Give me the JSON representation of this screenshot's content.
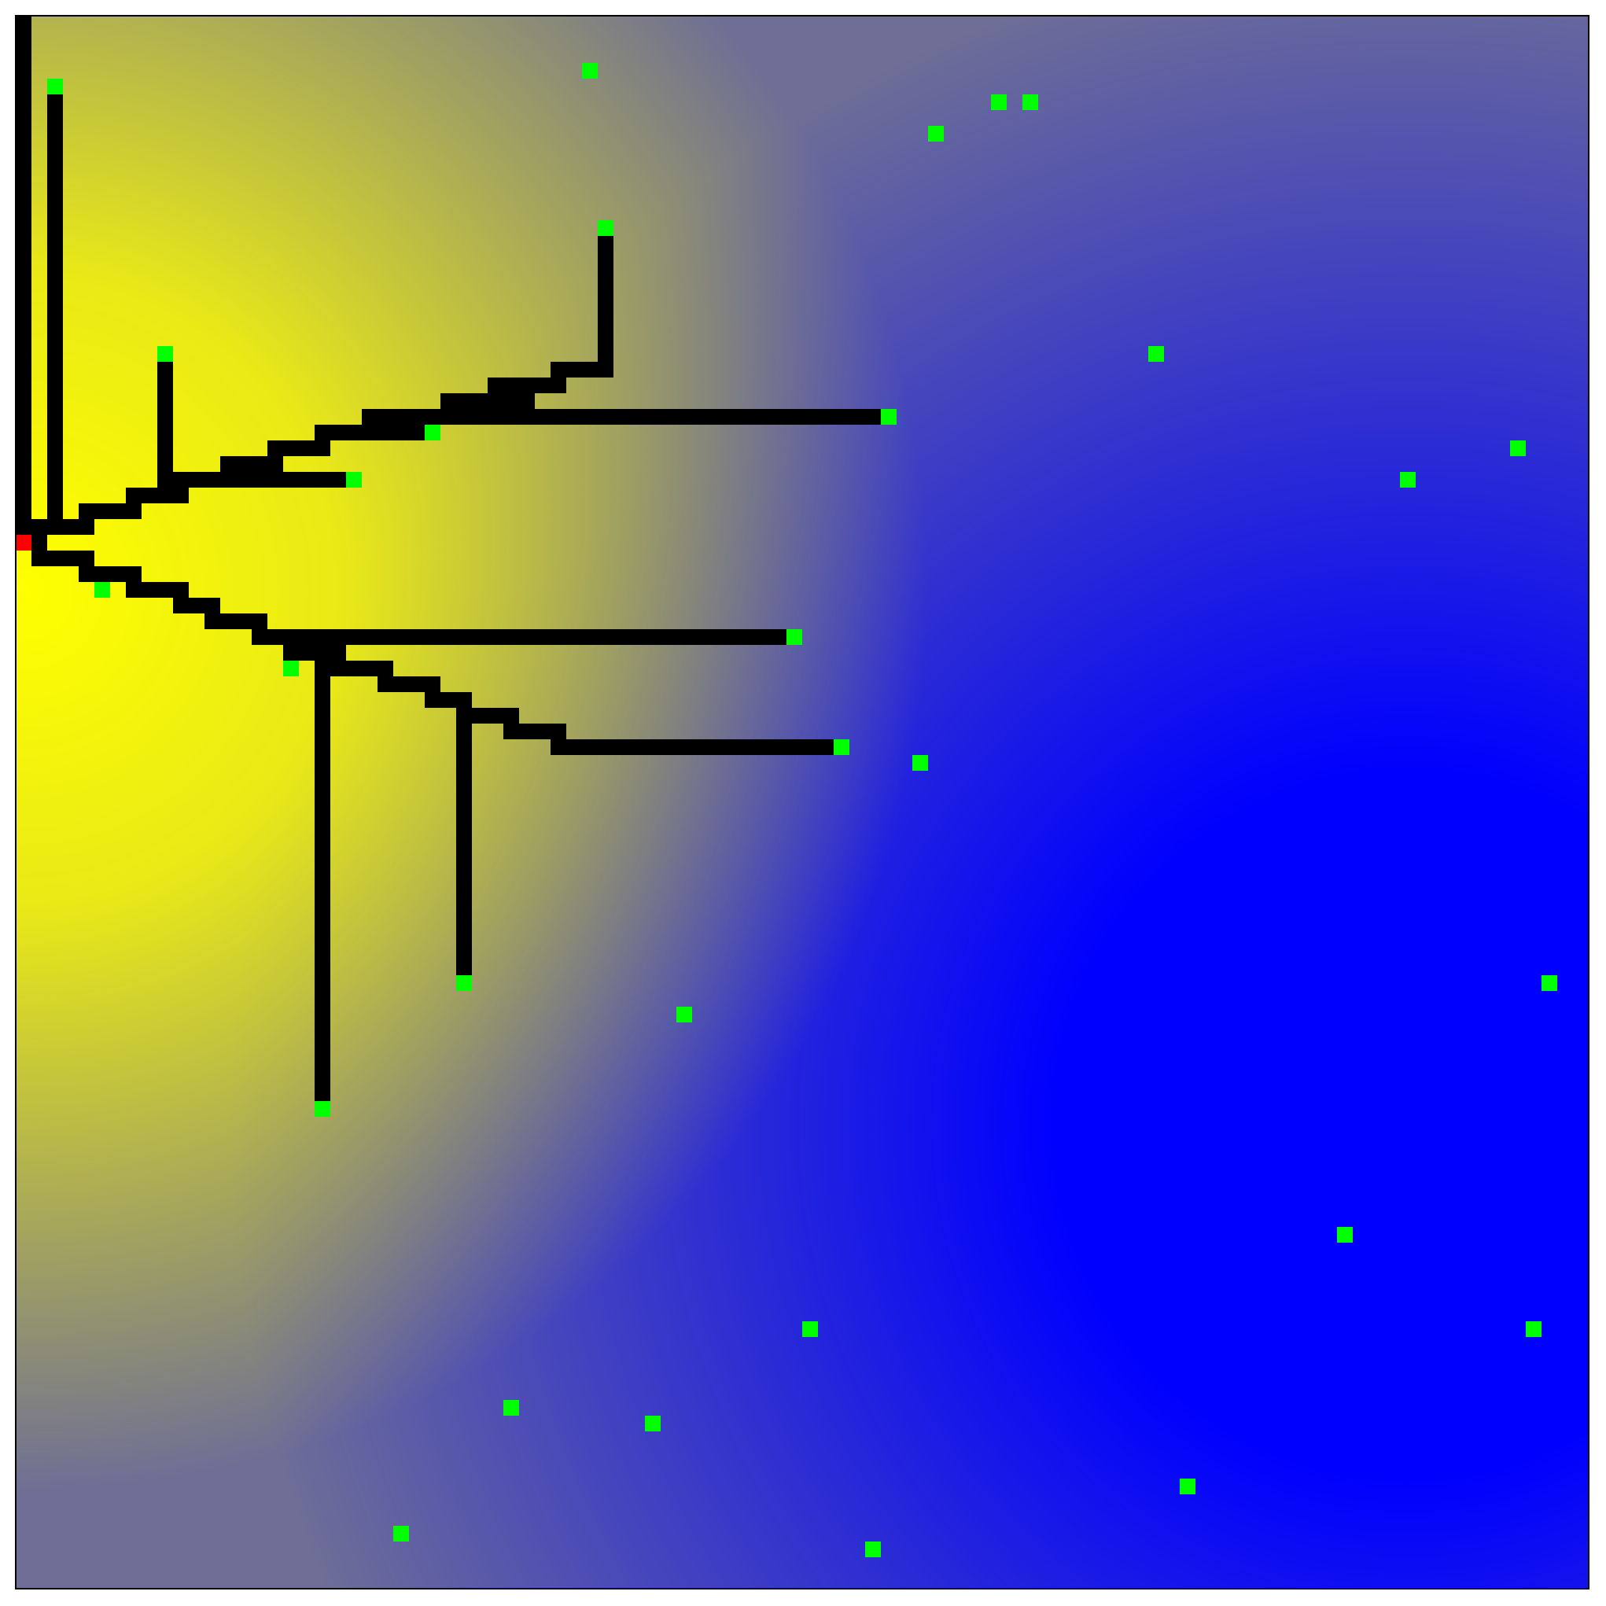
{
  "grid": {
    "cols": 100,
    "rows": 100,
    "border_color": "#000000",
    "background_gradient": {
      "hot_color": "#ffff00",
      "cold_color": "#0000ff",
      "hot_center_cell": [
        0,
        36
      ],
      "cold_center_cell": [
        88,
        70
      ]
    }
  },
  "source": {
    "cell": [
      0,
      33
    ],
    "color": "#ff0000"
  },
  "goals": {
    "color": "#00ff00",
    "cells": [
      [
        2,
        4
      ],
      [
        36,
        3
      ],
      [
        62,
        5
      ],
      [
        64,
        5
      ],
      [
        58,
        7
      ],
      [
        37,
        13
      ],
      [
        9,
        21
      ],
      [
        72,
        21
      ],
      [
        55,
        25
      ],
      [
        26,
        26
      ],
      [
        95,
        27
      ],
      [
        21,
        29
      ],
      [
        88,
        29
      ],
      [
        5,
        36
      ],
      [
        49,
        39
      ],
      [
        17,
        41
      ],
      [
        52,
        46
      ],
      [
        57,
        47
      ],
      [
        28,
        61
      ],
      [
        97,
        61
      ],
      [
        42,
        63
      ],
      [
        19,
        69
      ],
      [
        84,
        77
      ],
      [
        50,
        83
      ],
      [
        96,
        83
      ],
      [
        31,
        88
      ],
      [
        40,
        89
      ],
      [
        74,
        93
      ],
      [
        24,
        96
      ],
      [
        54,
        97
      ]
    ]
  },
  "paths": {
    "color": "#000000",
    "segments": [
      [
        [
          0,
          0
        ],
        [
          0,
          32
        ]
      ],
      [
        [
          2,
          5
        ],
        [
          2,
          32
        ]
      ],
      [
        [
          0,
          32
        ],
        [
          4,
          32
        ]
      ],
      [
        [
          4,
          31
        ],
        [
          7,
          31
        ]
      ],
      [
        [
          7,
          30
        ],
        [
          10,
          30
        ]
      ],
      [
        [
          9,
          22
        ],
        [
          9,
          29
        ]
      ],
      [
        [
          9,
          29
        ],
        [
          21,
          29
        ]
      ],
      [
        [
          10,
          29
        ],
        [
          13,
          29
        ]
      ],
      [
        [
          13,
          28
        ],
        [
          16,
          28
        ]
      ],
      [
        [
          16,
          27
        ],
        [
          19,
          27
        ]
      ],
      [
        [
          19,
          26
        ],
        [
          25,
          26
        ]
      ],
      [
        [
          22,
          25
        ],
        [
          29,
          25
        ]
      ],
      [
        [
          27,
          25
        ],
        [
          54,
          25
        ]
      ],
      [
        [
          27,
          24
        ],
        [
          32,
          24
        ]
      ],
      [
        [
          30,
          23
        ],
        [
          34,
          23
        ]
      ],
      [
        [
          34,
          22
        ],
        [
          37,
          22
        ]
      ],
      [
        [
          37,
          14
        ],
        [
          37,
          22
        ]
      ],
      [
        [
          1,
          33
        ],
        [
          1,
          34
        ]
      ],
      [
        [
          1,
          34
        ],
        [
          4,
          34
        ]
      ],
      [
        [
          4,
          35
        ],
        [
          7,
          35
        ]
      ],
      [
        [
          7,
          36
        ],
        [
          10,
          36
        ]
      ],
      [
        [
          10,
          37
        ],
        [
          12,
          37
        ]
      ],
      [
        [
          12,
          38
        ],
        [
          15,
          38
        ]
      ],
      [
        [
          15,
          39
        ],
        [
          48,
          39
        ]
      ],
      [
        [
          17,
          40
        ],
        [
          20,
          40
        ]
      ],
      [
        [
          19,
          40
        ],
        [
          19,
          68
        ]
      ],
      [
        [
          19,
          41
        ],
        [
          23,
          41
        ]
      ],
      [
        [
          23,
          42
        ],
        [
          26,
          42
        ]
      ],
      [
        [
          26,
          43
        ],
        [
          28,
          43
        ]
      ],
      [
        [
          28,
          44
        ],
        [
          31,
          44
        ]
      ],
      [
        [
          28,
          44
        ],
        [
          28,
          60
        ]
      ],
      [
        [
          31,
          45
        ],
        [
          34,
          45
        ]
      ],
      [
        [
          34,
          46
        ],
        [
          51,
          46
        ]
      ]
    ]
  }
}
